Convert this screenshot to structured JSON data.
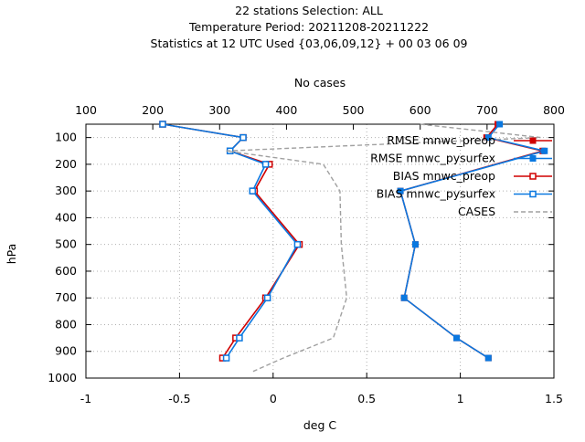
{
  "title_lines": [
    "22 stations Selection: ALL",
    "Temperature  Period: 20211208-20211222",
    "Statistics at 12 UTC  Used {03,06,09,12} + 00 03 06 09"
  ],
  "colors": {
    "rmse_preop": "#d00000",
    "rmse_pysurfex": "#0a78e0",
    "bias_preop": "#d00000",
    "bias_pysurfex": "#0a78e0",
    "cases": "#a0a0a0",
    "grid": "#b0b0b0"
  },
  "chart_data": {
    "type": "line",
    "xlabel": "deg C",
    "x2label": "No cases",
    "ylabel": "hPa",
    "xlim": [
      -1,
      1.5
    ],
    "x2lim": [
      100,
      800
    ],
    "ylim": [
      1000,
      50
    ],
    "y_reversed": true,
    "grid": true,
    "legend_position": "top-right",
    "x_ticks": [
      -1,
      -0.5,
      0,
      0.5,
      1,
      1.5
    ],
    "x_tick_labels": [
      "-1",
      "-0.5",
      "0",
      "0.5",
      "1",
      "1.5"
    ],
    "x2_ticks": [
      100,
      200,
      300,
      400,
      500,
      600,
      700,
      800
    ],
    "x2_tick_labels": [
      "100",
      "200",
      "300",
      "400",
      "500",
      "600",
      "700",
      "800"
    ],
    "y_ticks": [
      100,
      200,
      300,
      400,
      500,
      600,
      700,
      800,
      900,
      1000
    ],
    "y_tick_labels": [
      "100",
      "200",
      "300",
      "400",
      "500",
      "600",
      "700",
      "800",
      "900",
      "1000"
    ],
    "series": [
      {
        "name": "RMSE mnwc_preop",
        "key": "rmse_preop",
        "axis": "x",
        "marker": "filled-square",
        "dashed": false,
        "points": [
          {
            "p": 50,
            "x": 1.2
          },
          {
            "p": 100,
            "x": 1.14
          },
          {
            "p": 150,
            "x": 1.44
          },
          {
            "p": 300,
            "x": 0.68
          },
          {
            "p": 500,
            "x": 0.76
          },
          {
            "p": 700,
            "x": 0.7
          },
          {
            "p": 850,
            "x": 0.98
          },
          {
            "p": 925,
            "x": 1.15
          }
        ]
      },
      {
        "name": "RMSE mnwc_pysurfex",
        "key": "rmse_pysurfex",
        "axis": "x",
        "marker": "filled-square",
        "dashed": false,
        "points": [
          {
            "p": 50,
            "x": 1.21
          },
          {
            "p": 100,
            "x": 1.15
          },
          {
            "p": 150,
            "x": 1.45
          },
          {
            "p": 300,
            "x": 0.68
          },
          {
            "p": 500,
            "x": 0.76
          },
          {
            "p": 700,
            "x": 0.7
          },
          {
            "p": 850,
            "x": 0.98
          },
          {
            "p": 925,
            "x": 1.15
          }
        ]
      },
      {
        "name": "BIAS mnwc_preop",
        "key": "bias_preop",
        "axis": "x",
        "marker": "open-square",
        "dashed": false,
        "points": [
          {
            "p": 50,
            "x": -0.59
          },
          {
            "p": 100,
            "x": -0.16
          },
          {
            "p": 150,
            "x": -0.23
          },
          {
            "p": 200,
            "x": -0.02
          },
          {
            "p": 300,
            "x": -0.1
          },
          {
            "p": 500,
            "x": 0.14
          },
          {
            "p": 700,
            "x": -0.04
          },
          {
            "p": 850,
            "x": -0.2
          },
          {
            "p": 925,
            "x": -0.27
          }
        ]
      },
      {
        "name": "BIAS mnwc_pysurfex",
        "key": "bias_pysurfex",
        "axis": "x",
        "marker": "open-square",
        "dashed": false,
        "points": [
          {
            "p": 50,
            "x": -0.59
          },
          {
            "p": 100,
            "x": -0.16
          },
          {
            "p": 150,
            "x": -0.23
          },
          {
            "p": 200,
            "x": -0.04
          },
          {
            "p": 300,
            "x": -0.11
          },
          {
            "p": 500,
            "x": 0.13
          },
          {
            "p": 700,
            "x": -0.03
          },
          {
            "p": 850,
            "x": -0.18
          },
          {
            "p": 925,
            "x": -0.25
          }
        ]
      },
      {
        "name": "CASES",
        "key": "cases",
        "axis": "x2",
        "marker": "none",
        "dashed": true,
        "points": [
          {
            "p": 50,
            "x": 600
          },
          {
            "p": 100,
            "x": 780
          },
          {
            "p": 150,
            "x": 310
          },
          {
            "p": 200,
            "x": 455
          },
          {
            "p": 300,
            "x": 480
          },
          {
            "p": 500,
            "x": 482
          },
          {
            "p": 700,
            "x": 490
          },
          {
            "p": 850,
            "x": 470
          },
          {
            "p": 925,
            "x": 395
          },
          {
            "p": 975,
            "x": 350
          }
        ]
      }
    ]
  }
}
